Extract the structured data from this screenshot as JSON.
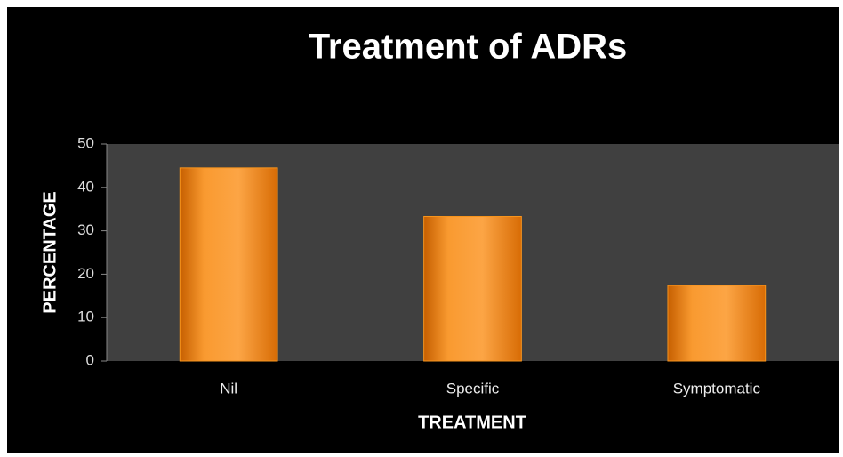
{
  "chart_data": {
    "type": "bar",
    "title": "Treatment of ADRs",
    "x_label": "TREATMENT",
    "y_label": "PERCENTAGE",
    "categories": [
      "Nil",
      "Specific",
      "Symptomatic"
    ],
    "values": [
      44.5,
      33.3,
      17.4
    ],
    "color": "#f7941d",
    "ylim": [
      0,
      50
    ],
    "yticks": [
      0,
      10,
      20,
      30,
      40,
      50
    ],
    "grid": false
  }
}
